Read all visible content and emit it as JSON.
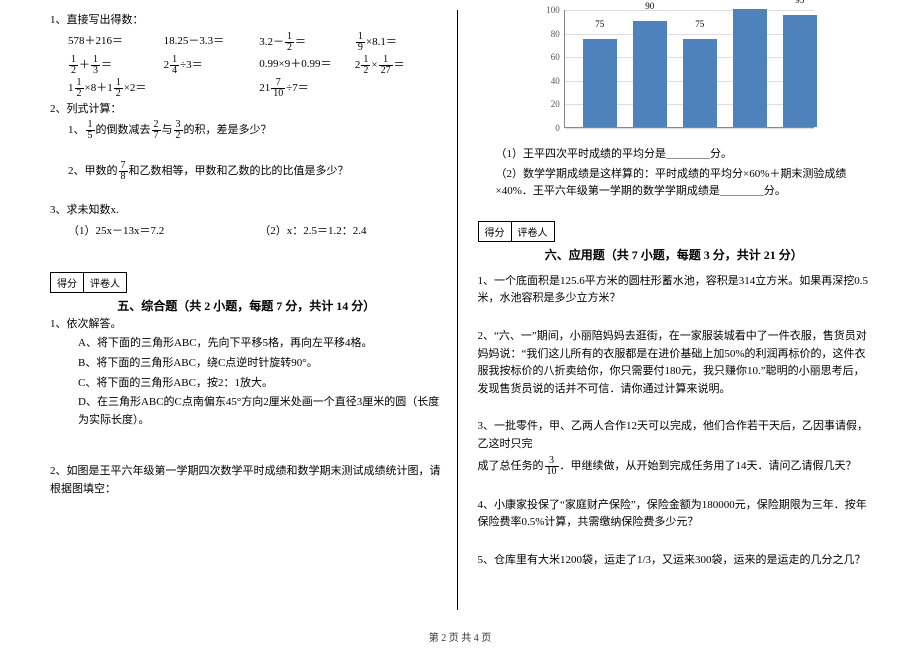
{
  "left": {
    "q1_head": "1、直接写出得数：",
    "eq_row1": [
      "578＋216＝",
      "18.25－3.3＝",
      "3.2－<f>1/2</f>＝",
      "<f>1/9</f>×8.1＝"
    ],
    "eq_row2": [
      "<f>1/2</f>＋<f>1/3</f>＝",
      "2<f>1/4</f>÷3＝",
      "0.99×9＋0.99＝",
      "2<f>1/2</f>×<f>1/27</f>＝"
    ],
    "eq_row3": [
      "1<f>1/2</f>×8＋1<f>1/2</f>×2＝",
      "",
      "21<f>7/10</f>÷7＝",
      ""
    ],
    "q2_head": "2、列式计算：",
    "q2_1": "1、<f>1/5</f>的倒数减去<f>2/7</f>与<f>3/2</f>的积，差是多少？",
    "q2_2": "2、甲数的<f>7/8</f>和乙数相等，甲数和乙数的比的比值是多少？",
    "q3_head": "3、求未知数x.",
    "q3_1": "（1）25x－13x＝7.2",
    "q3_2": "（2）x：2.5＝1.2：2.4",
    "score_label_a": "得分",
    "score_label_b": "评卷人",
    "sec5_title": "五、综合题（共 2 小题，每题 7 分，共计 14 分）",
    "q5_1_head": "1、依次解答。",
    "q5_1_a": "A、将下面的三角形ABC，先向下平移5格，再向左平移4格。",
    "q5_1_b": "B、将下面的三角形ABC，绕C点逆时针旋转90°。",
    "q5_1_c": "C、将下面的三角形ABC，按2：1放大。",
    "q5_1_d": "D、在三角形ABC的C点南偏东45°方向2厘米处画一个直径3厘米的圆（长度为实际长度）。",
    "q5_2": "2、如图是王平六年级第一学期四次数学平时成绩和数学期末测试成绩统计图，请根据图填空："
  },
  "right": {
    "chart": {
      "ymax": 100,
      "yticks": [
        0,
        20,
        40,
        60,
        80,
        100
      ],
      "bars": [
        {
          "v": 75,
          "x": 18
        },
        {
          "v": 90,
          "x": 68
        },
        {
          "v": 75,
          "x": 118
        },
        {
          "v": 100,
          "x": 168
        },
        {
          "v": 95,
          "x": 218
        }
      ],
      "bar_color": "#4e82bc",
      "grid_color": "#dddddd",
      "axis_color": "#888888"
    },
    "chart_q1": "（1）王平四次平时成绩的平均分是＿＿＿＿分。",
    "chart_q2": "（2）数学学期成绩是这样算的：平时成绩的平均分×60%＋期末测验成绩×40%．王平六年级第一学期的数学学期成绩是＿＿＿＿分。",
    "score_label_a": "得分",
    "score_label_b": "评卷人",
    "sec6_title": "六、应用题（共 7 小题，每题 3 分，共计 21 分）",
    "q6_1": "1、一个底面积是125.6平方米的圆柱形蓄水池，容积是314立方米。如果再深挖0.5米，水池容积是多少立方米？",
    "q6_2": "2、“六、一”期间，小丽陪妈妈去逛街，在一家服装城看中了一件衣服，售货员对妈妈说：“我们这儿所有的衣服都是在进价基础上加50%的利润再标价的，这件衣服我按标价的八折卖给你，你只需要付180元，我只赚你10.”聪明的小丽思考后，发现售货员说的话并不可信．请你通过计算来说明。",
    "q6_3a": "3、一批零件，甲、乙两人合作12天可以完成，他们合作若干天后，乙因事请假，乙这时只完",
    "q6_3b": "成了总任务的<f>3/10</f>．甲继续做，从开始到完成任务用了14天．请问乙请假几天？",
    "q6_4": "4、小康家投保了“家庭财产保险”，保险金额为180000元，保险期限为三年．按年保险费率0.5%计算，共需缴纳保险费多少元？",
    "q6_5": "5、仓库里有大米1200袋，运走了1/3，又运来300袋，运来的是运走的几分之几？"
  },
  "footer": "第 2 页 共 4 页"
}
